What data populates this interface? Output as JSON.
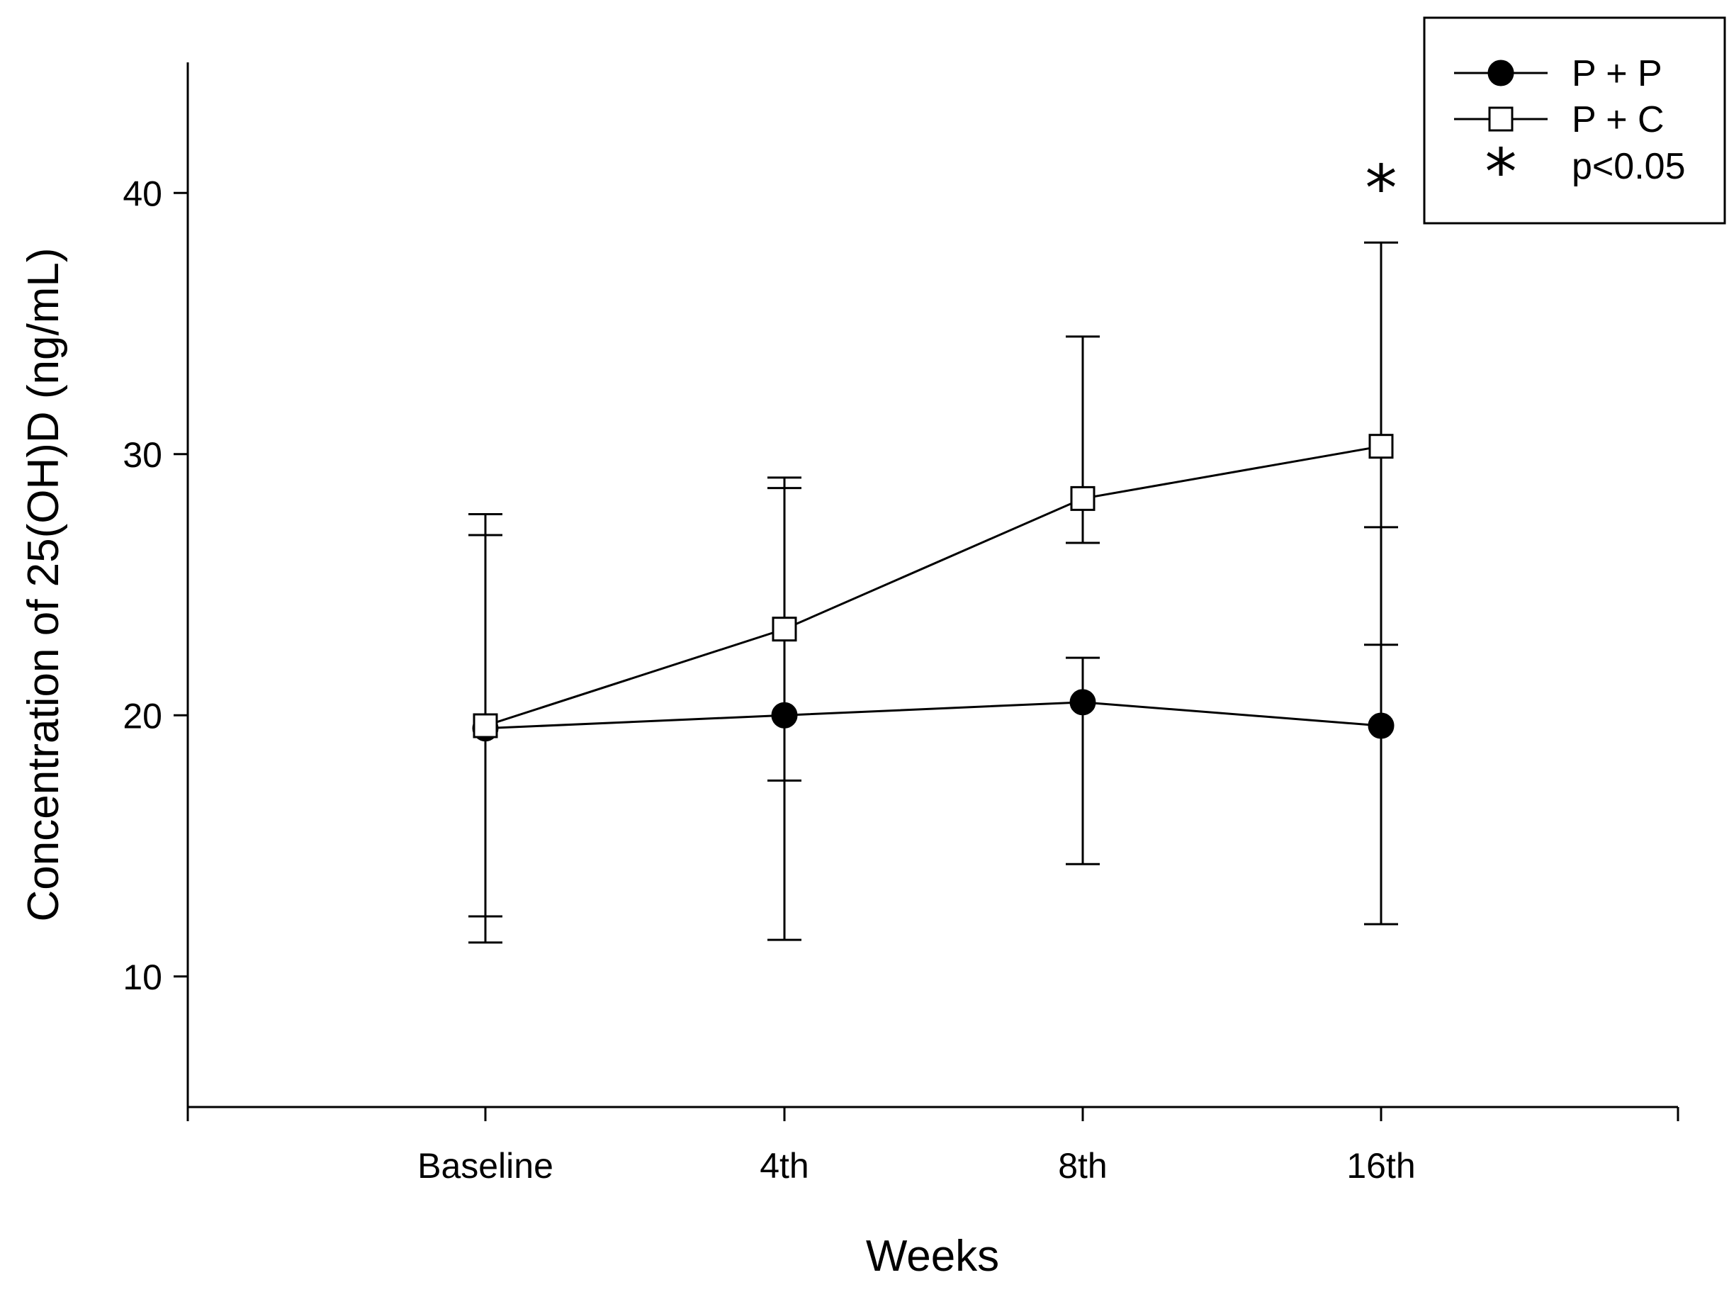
{
  "chart_data": {
    "type": "line",
    "title": "",
    "xlabel": "Weeks",
    "ylabel": "Concentration of 25(OH)D (ng/mL)",
    "categories": [
      "Baseline",
      "4th",
      "8th",
      "16th"
    ],
    "ylim": [
      5,
      45
    ],
    "yticks": [
      10,
      20,
      30,
      40
    ],
    "ytick_labels": [
      "10",
      "20",
      "30",
      "40"
    ],
    "series": [
      {
        "name": "P + P",
        "marker": "filled-circle",
        "values": [
          19.5,
          20.0,
          20.5,
          19.6
        ],
        "err_upper": [
          27.7,
          28.7,
          22.2,
          27.2
        ],
        "err_lower": [
          11.3,
          11.4,
          14.3,
          12.0
        ]
      },
      {
        "name": "P + C",
        "marker": "open-square",
        "values": [
          19.6,
          23.3,
          28.3,
          30.3
        ],
        "err_upper": [
          26.9,
          29.1,
          34.5,
          38.1
        ],
        "err_lower": [
          12.3,
          17.5,
          26.6,
          22.7
        ]
      }
    ],
    "annotations": [
      {
        "text": "*",
        "category": "16th",
        "y": 40.3,
        "meaning": "p<0.05"
      }
    ],
    "legend": {
      "position": "top-right",
      "entries": [
        {
          "label": "P + P",
          "marker": "filled-circle"
        },
        {
          "label": "P + C",
          "marker": "open-square"
        },
        {
          "label": "p<0.05",
          "marker": "asterisk"
        }
      ]
    },
    "grid": false
  }
}
